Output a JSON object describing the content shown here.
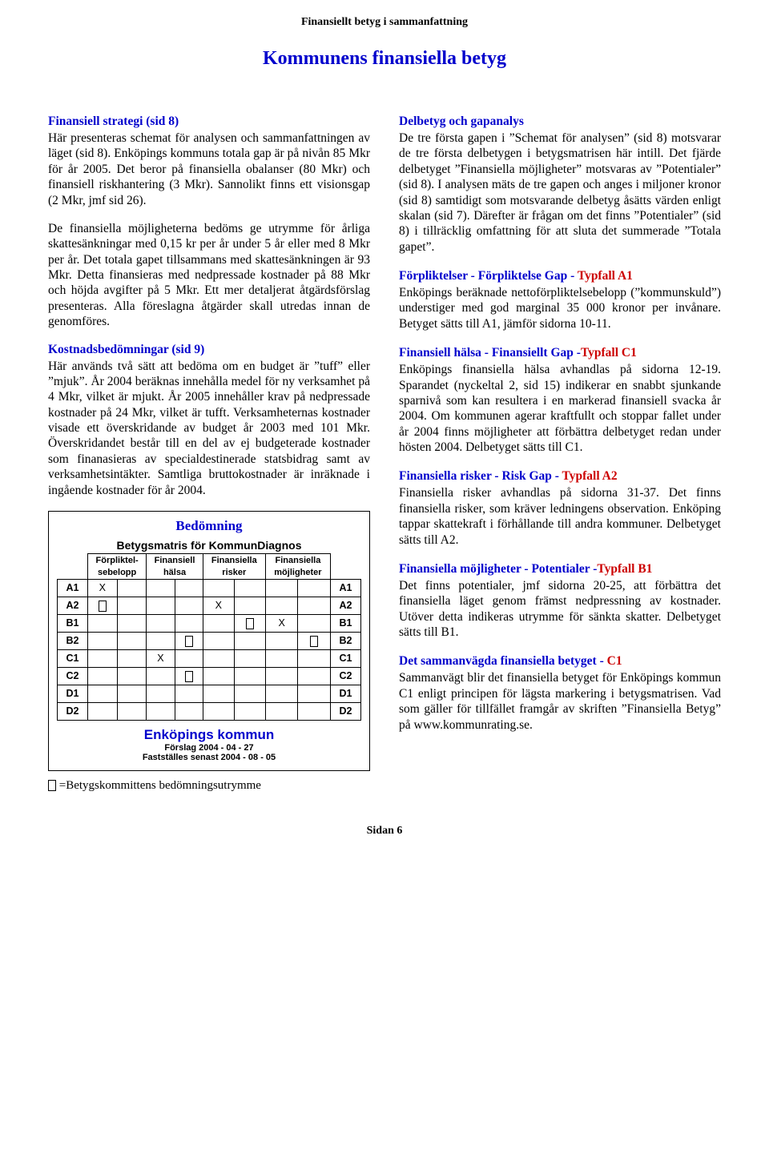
{
  "header": "Finansiellt betyg i sammanfattning",
  "title": "Kommunens finansiella betyg",
  "left": {
    "h1": "Finansiell strategi (sid 8)",
    "p1": "Här presenteras schemat för analysen och sammanfattningen av läget (sid 8). Enköpings kommuns totala gap är på nivån 85 Mkr för år 2005. Det beror på finansiella obalanser (80 Mkr) och finansiell riskhantering (3 Mkr). Sannolikt finns ett visionsgap (2 Mkr, jmf sid 26).",
    "p2": "De finansiella möjligheterna bedöms ge utrymme för årliga skattesänkningar med 0,15 kr per år under 5 år eller med 8 Mkr per år. Det totala gapet tillsammans med skattesänkningen är 93 Mkr. Detta finansieras med nedpressade kostnader på 88 Mkr och höjda avgifter på 5 Mkr. Ett mer detaljerat åtgärdsförslag presenteras. Alla föreslagna åtgärder skall utredas innan de genomföres.",
    "h2": "Kostnadsbedömningar (sid 9)",
    "p3": "Här används två sätt att bedöma om en budget är ”tuff” eller ”mjuk”. År 2004 beräknas innehålla medel för ny verksamhet på 4 Mkr, vilket är mjukt. År 2005  innehåller krav på nedpressade kostnader på 24 Mkr, vilket är tufft. Verksamheternas kostnader visade ett överskridande av budget år 2003 med 101 Mkr. Överskridandet består till en del av ej budgeterade kostnader som finanasieras av specialdestinerade statsbidrag samt av verksamhetsintäkter. Samtliga bruttokostnader är inräknade i ingående kostnader för år 2004.",
    "box_title": "Bedömning",
    "matrix_caption": "Betygsmatris för KommunDiagnos",
    "colhead_top": [
      "Förpliktel-",
      "Finansiell",
      "Finansiella",
      "Finansiella"
    ],
    "colhead_bot": [
      "sebelopp",
      "hälsa",
      "risker",
      "möjligheter"
    ],
    "grades": [
      "A1",
      "A2",
      "B1",
      "B2",
      "C1",
      "C2",
      "D1",
      "D2"
    ],
    "marks": {
      "A1": 0,
      "A2": 2,
      "B1": 3,
      "C1": 1
    },
    "kommun": "Enköpings kommun",
    "kommun_sub1": "Förslag  2004 - 04 - 27",
    "kommun_sub2": "Fastställes senast  2004 - 08 - 05",
    "footnote": "=Betygskommittens bedömningsutrymme"
  },
  "right": {
    "h1": "Delbetyg och gapanalys",
    "p1": "De tre första gapen i ”Schemat för analysen” (sid 8) motsvarar de tre första delbetygen i betygsmatrisen här intill. Det fjärde delbetyget ”Finansiella möjligheter” motsvaras av ”Potentialer” (sid 8).  I analysen mäts de tre gapen och anges i miljoner kronor (sid 8) samtidigt som motsvarande delbetyg åsätts värden enligt skalan (sid 7). Därefter är frågan om det finns ”Potentialer” (sid 8) i tillräcklig omfattning för att sluta det summerade ”Totala gapet”.",
    "h2a": "Förpliktelser - Förpliktelse Gap - ",
    "h2b": "Typfall A1",
    "p2": "Enköpings beräknade nettoförpliktelsebelopp (”kommunskuld”) understiger med god marginal 35 000 kronor per invånare. Betyget sätts till A1, jämför sidorna 10-11.",
    "h3a": "Finansiell hälsa - Finansiellt Gap -",
    "h3b": "Typfall C1",
    "p3": "Enköpings finansiella hälsa avhandlas på sidorna 12-19. Sparandet (nyckeltal 2, sid 15) indikerar en snabbt sjunkande sparnivå som kan resultera i en markerad finansiell svacka år 2004. Om kommunen agerar kraftfullt och stoppar fallet under år 2004 finns möjligheter att förbättra delbetyget redan under hösten 2004. Delbetyget sätts till C1.",
    "h4a": "Finansiella risker - Risk Gap - ",
    "h4b": "Typfall A2",
    "p4": "Finansiella risker avhandlas på sidorna 31-37. Det finns finansiella risker, som kräver ledningens observation. Enköping tappar skattekraft i förhållande till andra kommuner. Delbetyget sätts till A2.",
    "h5a": "Finansiella möjligheter - Potentialer -",
    "h5b": "Typfall B1",
    "p5": "Det finns potentialer, jmf sidorna 20-25, att förbättra det finansiella läget genom främst nedpressning av kostnader. Utöver detta indikeras utrymme för sänkta skatter. Delbetyget sätts till B1.",
    "h6a": "Det sammanvägda finansiella betyget - ",
    "h6b": "C1",
    "p6": "Sammanvägt blir det finansiella betyget för Enköpings kommun C1 enligt principen för lägsta markering i betygsmatrisen. Vad som gäller för tillfället framgår av skriften ”Finansiella Betyg” på www.kommunrating.se."
  },
  "footer": "Sidan 6"
}
